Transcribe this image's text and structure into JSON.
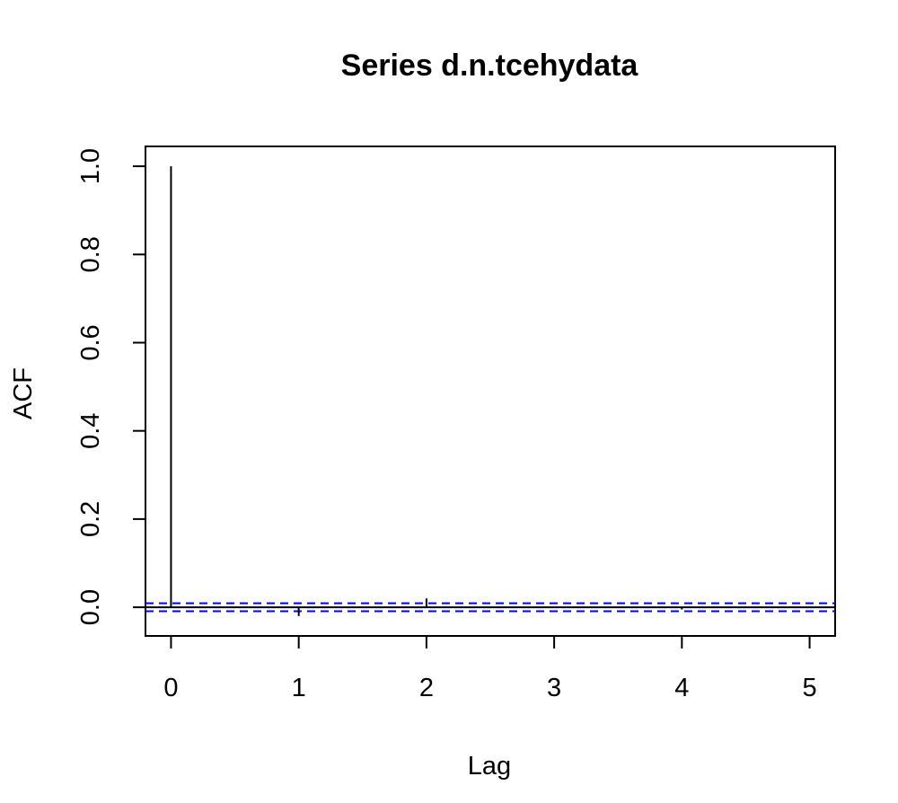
{
  "chart_data": {
    "type": "bar",
    "title": "Series  d.n.tcehydata",
    "xlabel": "Lag",
    "ylabel": "ACF",
    "xlim": [
      -0.2,
      5.2
    ],
    "ylim": [
      -0.065,
      1.045
    ],
    "x_ticks": [
      "0",
      "1",
      "2",
      "3",
      "4",
      "5"
    ],
    "y_ticks": [
      "0.0",
      "0.2",
      "0.4",
      "0.6",
      "0.8",
      "1.0"
    ],
    "lags": [
      0,
      1,
      2,
      3,
      4,
      5
    ],
    "acf": [
      1.0,
      -0.02,
      0.02,
      0.0,
      -0.005,
      0.0
    ],
    "confidence_bound": 0.009,
    "zero_line": true,
    "grid": false,
    "colors": {
      "spike": "#000000",
      "confidence_band": "#0000ff",
      "zero_line": "#000000",
      "frame": "#000000"
    }
  }
}
